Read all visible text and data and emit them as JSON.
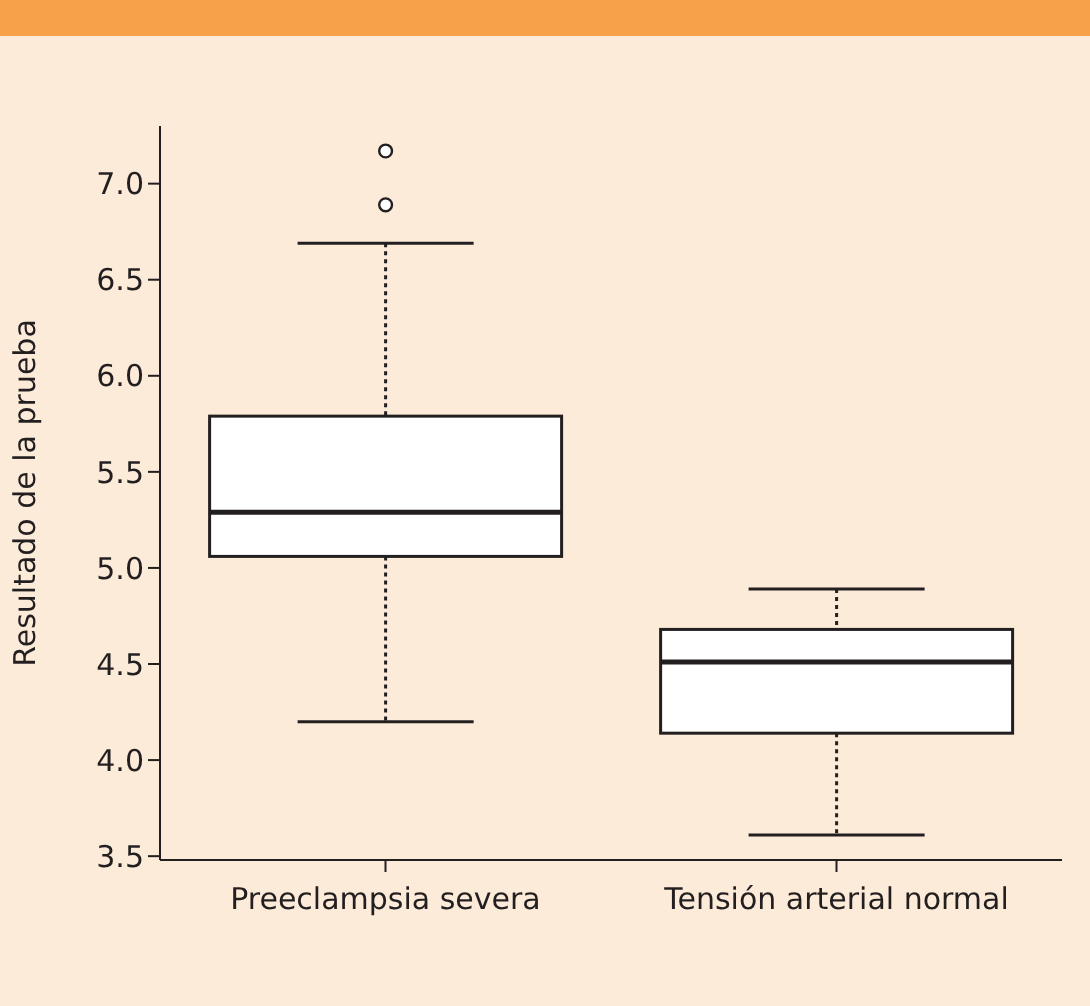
{
  "chart_data": {
    "type": "box",
    "ylabel": "Resultado de la prueba",
    "categories": [
      "Preeclampsia severa",
      "Tensión arterial normal"
    ],
    "boxes": [
      {
        "low": 4.2,
        "q1": 5.06,
        "median": 5.29,
        "q3": 5.79,
        "high": 6.69,
        "outliers": [
          6.89,
          7.17
        ]
      },
      {
        "low": 3.61,
        "q1": 4.14,
        "median": 4.51,
        "q3": 4.68,
        "high": 4.89
      }
    ],
    "ylim": [
      3.48,
      7.3
    ],
    "yticks": [
      {
        "value": 3.5,
        "label": "3.5"
      },
      {
        "value": 4,
        "label": "4.0"
      },
      {
        "value": 4.5,
        "label": "4.5"
      },
      {
        "value": 5,
        "label": "5.0"
      },
      {
        "value": 5.5,
        "label": "5.5"
      },
      {
        "value": 6,
        "label": "6.0"
      },
      {
        "value": 6.5,
        "label": "6.5"
      },
      {
        "value": 7,
        "label": "7.0"
      }
    ],
    "grid": false,
    "legend": false
  }
}
